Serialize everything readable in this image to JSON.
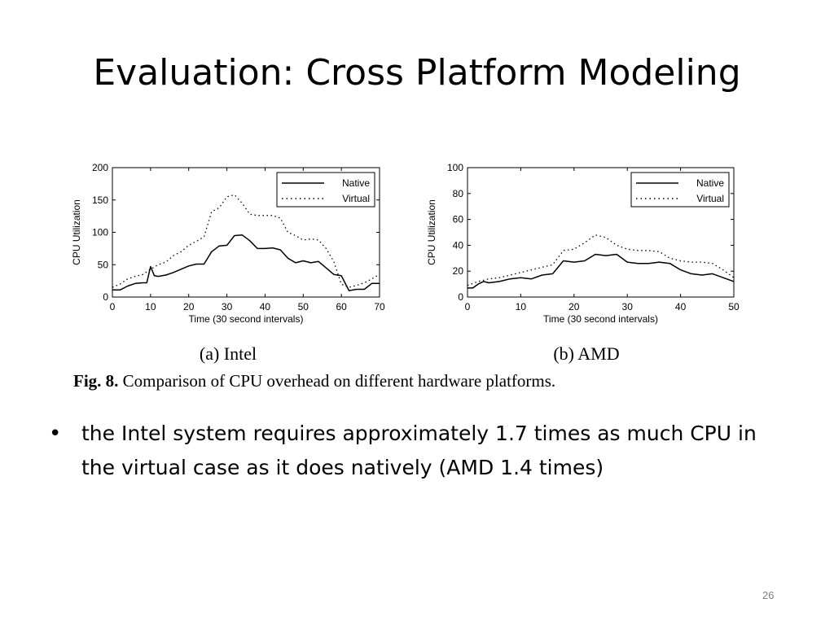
{
  "slide": {
    "title": "Evaluation: Cross Platform Modeling",
    "number": "26"
  },
  "figure": {
    "caption_label": "Fig. 8.",
    "caption_text": "Comparison of CPU overhead on different hardware platforms."
  },
  "bullets": [
    "the Intel system requires approximately 1.7 times as much CPU in the virtual case as it does natively (AMD 1.4 times)"
  ],
  "chart_data": [
    {
      "type": "line",
      "subcaption": "(a) Intel",
      "xlabel": "Time (30 second intervals)",
      "ylabel": "CPU Utilization",
      "xlim": [
        0,
        70
      ],
      "ylim": [
        0,
        200
      ],
      "xticks": [
        0,
        10,
        20,
        30,
        40,
        50,
        60,
        70
      ],
      "yticks": [
        0,
        50,
        100,
        150,
        200
      ],
      "grid": false,
      "legend": "top-right",
      "series": [
        {
          "name": "Native",
          "style": "solid",
          "x": [
            0,
            2,
            4,
            6,
            8,
            9,
            10,
            11,
            12,
            14,
            16,
            18,
            20,
            22,
            24,
            26,
            28,
            30,
            32,
            34,
            36,
            38,
            40,
            42,
            44,
            46,
            48,
            50,
            52,
            54,
            56,
            58,
            60,
            62,
            64,
            66,
            68,
            70
          ],
          "y": [
            11,
            11,
            17,
            21,
            22,
            22,
            47,
            33,
            32,
            34,
            38,
            43,
            48,
            51,
            51,
            70,
            79,
            80,
            95,
            96,
            87,
            75,
            75,
            76,
            73,
            60,
            53,
            56,
            53,
            55,
            45,
            35,
            33,
            10,
            12,
            12,
            21,
            21
          ]
        },
        {
          "name": "Virtual",
          "style": "dotted",
          "x": [
            0,
            2,
            4,
            6,
            8,
            10,
            12,
            14,
            16,
            18,
            20,
            22,
            24,
            26,
            28,
            30,
            32,
            34,
            36,
            38,
            40,
            42,
            44,
            46,
            48,
            50,
            52,
            54,
            56,
            58,
            60,
            62,
            64,
            66,
            68,
            70
          ],
          "y": [
            15,
            20,
            28,
            32,
            35,
            43,
            50,
            54,
            64,
            70,
            80,
            86,
            93,
            132,
            138,
            155,
            158,
            145,
            128,
            126,
            126,
            126,
            122,
            100,
            95,
            88,
            90,
            88,
            75,
            55,
            20,
            15,
            18,
            22,
            28,
            35
          ]
        }
      ]
    },
    {
      "type": "line",
      "subcaption": "(b) AMD",
      "xlabel": "Time (30 second intervals)",
      "ylabel": "CPU Utilization",
      "xlim": [
        0,
        50
      ],
      "ylim": [
        0,
        100
      ],
      "xticks": [
        0,
        10,
        20,
        30,
        40,
        50
      ],
      "yticks": [
        0,
        20,
        40,
        60,
        80,
        100
      ],
      "grid": false,
      "legend": "top-right",
      "series": [
        {
          "name": "Native",
          "style": "solid",
          "x": [
            0,
            1,
            2,
            3,
            4,
            6,
            8,
            10,
            12,
            14,
            16,
            18,
            20,
            22,
            24,
            26,
            28,
            30,
            32,
            34,
            36,
            38,
            40,
            42,
            44,
            46,
            48,
            50
          ],
          "y": [
            7,
            7,
            10,
            12,
            11,
            12,
            14,
            15,
            14,
            17,
            18,
            28,
            27,
            28,
            33,
            32,
            33,
            27,
            26,
            26,
            27,
            26,
            21,
            18,
            17,
            18,
            15,
            12
          ]
        },
        {
          "name": "Virtual",
          "style": "dotted",
          "x": [
            0,
            2,
            4,
            6,
            8,
            10,
            12,
            14,
            16,
            18,
            20,
            22,
            24,
            26,
            28,
            30,
            32,
            34,
            36,
            38,
            40,
            42,
            44,
            46,
            48,
            50
          ],
          "y": [
            9,
            12,
            14,
            15,
            17,
            19,
            21,
            23,
            25,
            36,
            37,
            42,
            48,
            46,
            40,
            37,
            36,
            36,
            35,
            30,
            28,
            27,
            27,
            26,
            21,
            15
          ]
        }
      ]
    }
  ]
}
